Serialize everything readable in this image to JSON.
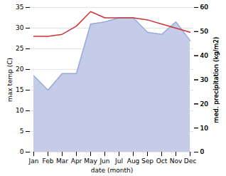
{
  "chart_data": {
    "type": "line",
    "xlabel": "date (month)",
    "ylabel": "max temp (C)",
    "y2label": "med. precipitation (kg/m2)",
    "categories": [
      "Jan",
      "Feb",
      "Mar",
      "Apr",
      "May",
      "Jun",
      "Jul",
      "Aug",
      "Sep",
      "Oct",
      "Nov",
      "Dec"
    ],
    "series": [
      {
        "type": "area",
        "color": "#c5cce8",
        "values": [
          18.5,
          15.0,
          19.0,
          19.0,
          31.0,
          31.5,
          32.5,
          32.5,
          29.0,
          28.5,
          31.5,
          27.0
        ]
      },
      {
        "type": "line",
        "color": "#99aadd",
        "values": [
          18.5,
          15.0,
          19.0,
          19.0,
          31.0,
          31.5,
          32.5,
          32.5,
          29.0,
          28.5,
          31.5,
          27.0
        ]
      },
      {
        "type": "line",
        "color": "#cc3333",
        "values": [
          28.0,
          28.0,
          28.5,
          30.5,
          34.0,
          32.5,
          32.5,
          32.5,
          32.0,
          31.0,
          30.0,
          29.0
        ]
      }
    ],
    "ylim": [
      0,
      35
    ],
    "yticks": [
      0,
      5,
      10,
      15,
      20,
      25,
      30,
      35
    ],
    "y2lim": [
      0,
      60
    ],
    "y2ticks": [
      0,
      10,
      20,
      30,
      40,
      50,
      60
    ],
    "grid": true
  }
}
